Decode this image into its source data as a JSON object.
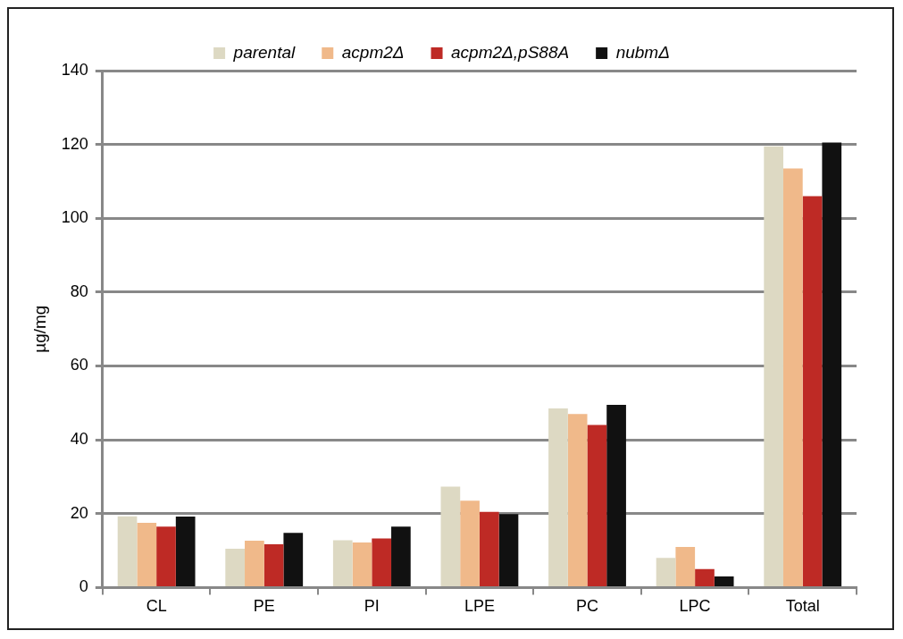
{
  "chart_data": {
    "type": "bar",
    "ylabel": "µg/mg",
    "categories": [
      "CL",
      "PE",
      "PI",
      "LPE",
      "PC",
      "LPC",
      "Total"
    ],
    "series": [
      {
        "name": "parental",
        "color": "#ddd9c3",
        "values": [
          19.3,
          10.5,
          12.8,
          27.3,
          48.5,
          8,
          119.5
        ]
      },
      {
        "name": "acpm2Δ",
        "color": "#f0b98a",
        "values": [
          17.5,
          12.7,
          12.2,
          23.5,
          47,
          11,
          113.5
        ]
      },
      {
        "name": "acpm2Δ,pS88A",
        "color": "#be2a25",
        "values": [
          16.5,
          11.7,
          13.3,
          20.5,
          44,
          5,
          106
        ]
      },
      {
        "name": "nubmΔ",
        "color": "#111111",
        "values": [
          19.2,
          14.8,
          16.5,
          19.9,
          49.5,
          3,
          120.5
        ]
      }
    ],
    "ylim": [
      0,
      140
    ],
    "yticks": [
      0,
      20,
      40,
      60,
      80,
      100,
      120,
      140
    ],
    "grid": "y",
    "legend": "top"
  }
}
